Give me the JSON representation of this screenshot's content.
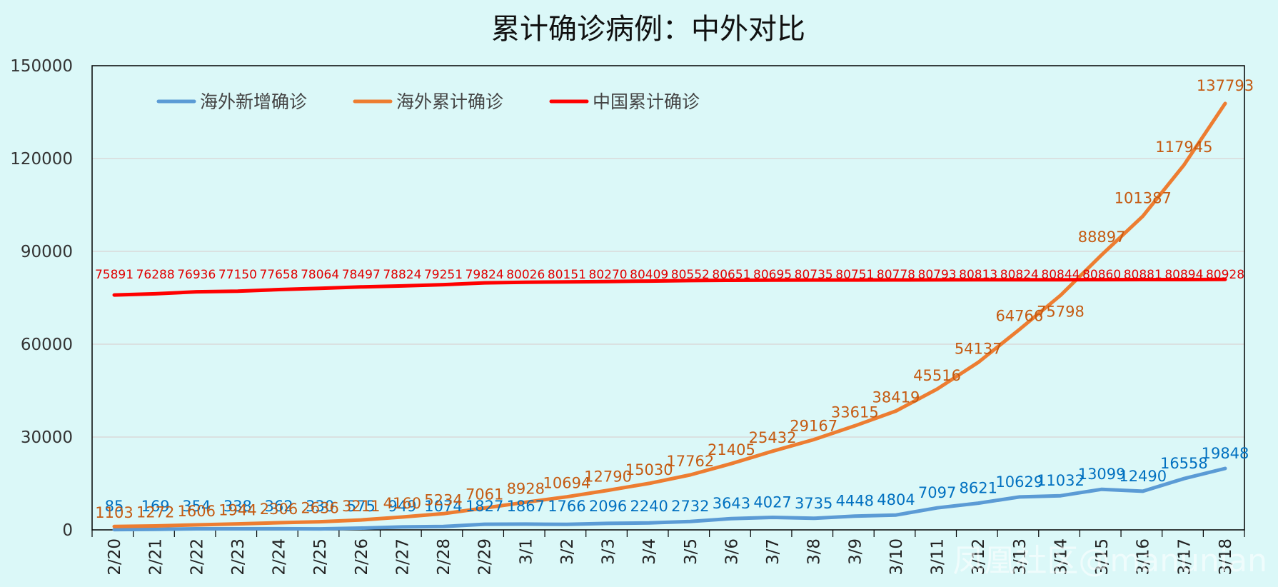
{
  "chart_data": {
    "type": "line",
    "title": "累计确诊病例：中外对比",
    "categories": [
      "2/20",
      "2/21",
      "2/22",
      "2/23",
      "2/24",
      "2/25",
      "2/26",
      "2/27",
      "2/28",
      "2/29",
      "3/1",
      "3/2",
      "3/3",
      "3/4",
      "3/5",
      "3/6",
      "3/7",
      "3/8",
      "3/9",
      "3/10",
      "3/11",
      "3/12",
      "3/13",
      "3/14",
      "3/15",
      "3/16",
      "3/17",
      "3/18"
    ],
    "y_ticks": [
      "0",
      "30000",
      "60000",
      "90000",
      "120000",
      "150000"
    ],
    "ylim": [
      0,
      150000
    ],
    "legend_position": "top-left",
    "series": [
      {
        "name": "海外新增确诊",
        "color": "#5b9bd5",
        "label_color": "#0070c0",
        "values": [
          85,
          169,
          354,
          338,
          362,
          330,
          575,
          949,
          1074,
          1827,
          1867,
          1766,
          2096,
          2240,
          2732,
          3643,
          4027,
          3735,
          4448,
          4804,
          7097,
          8621,
          10629,
          11032,
          13099,
          12490,
          16558,
          19848
        ]
      },
      {
        "name": "海外累计确诊",
        "color": "#ed7d31",
        "label_color": "#c55a11",
        "values": [
          1103,
          1272,
          1606,
          1944,
          2306,
          2636,
          3211,
          4160,
          5234,
          7061,
          8928,
          10694,
          12790,
          15030,
          17762,
          21405,
          25432,
          29167,
          33615,
          38419,
          45516,
          54137,
          64766,
          75798,
          88897,
          101387,
          117945,
          137793
        ]
      },
      {
        "name": "中国累计确诊",
        "color": "#ff0000",
        "label_color": "#e00000",
        "values": [
          75891,
          76288,
          76936,
          77150,
          77658,
          78064,
          78497,
          78824,
          79251,
          79824,
          80026,
          80151,
          80270,
          80409,
          80552,
          80651,
          80695,
          80735,
          80751,
          80778,
          80793,
          80813,
          80824,
          80844,
          80860,
          80881,
          80894,
          80928
        ]
      }
    ]
  },
  "watermark": "凤凰社区@manunian"
}
